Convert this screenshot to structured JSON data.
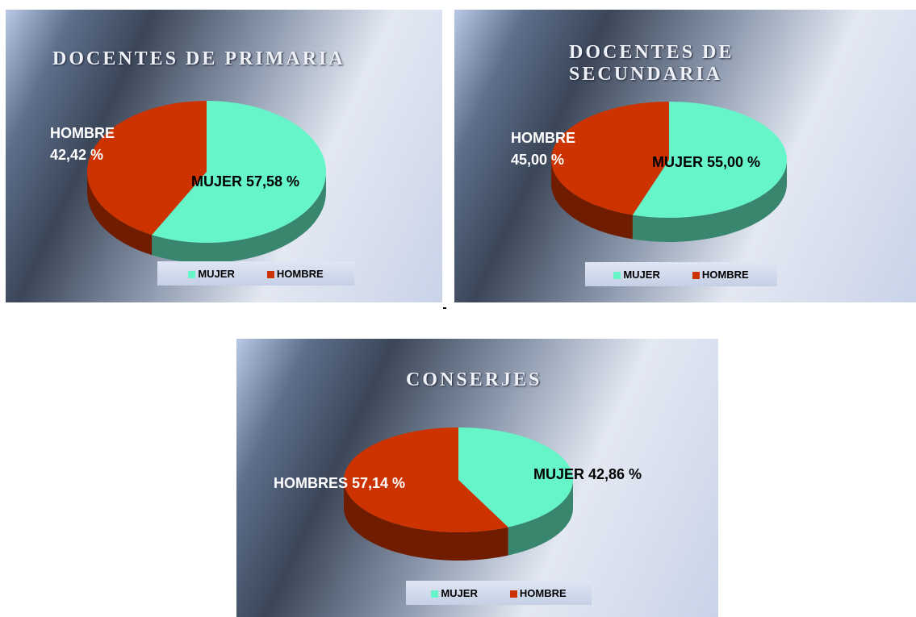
{
  "chart_data": [
    {
      "type": "pie",
      "title": "DOCENTES DE PRIMARIA",
      "categories": [
        "MUJER",
        "HOMBRE"
      ],
      "values": [
        57.58,
        42.42
      ],
      "value_labels": [
        "MUJER 57,58 %",
        "HOMBRE\n42,42 %"
      ],
      "colors": [
        "#66f5c8",
        "#cc3300"
      ]
    },
    {
      "type": "pie",
      "title": "DOCENTES DE SECUNDARIA",
      "categories": [
        "MUJER",
        "HOMBRE"
      ],
      "values": [
        55.0,
        45.0
      ],
      "value_labels": [
        "MUJER 55,00 %",
        "HOMBRE\n45,00 %"
      ],
      "colors": [
        "#66f5c8",
        "#cc3300"
      ]
    },
    {
      "type": "pie",
      "title": "CONSERJES",
      "categories": [
        "MUJER",
        "HOMBRE"
      ],
      "values": [
        42.86,
        57.14
      ],
      "value_labels": [
        "MUJER 42,86 %",
        "HOMBRES 57,14 %"
      ],
      "colors": [
        "#66f5c8",
        "#cc3300"
      ]
    }
  ]
}
